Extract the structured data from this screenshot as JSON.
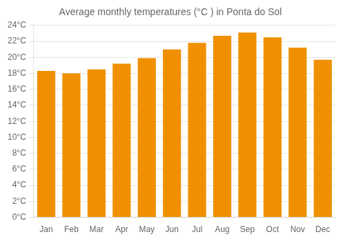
{
  "chart_data": {
    "type": "bar",
    "title": "Average monthly temperatures (°C ) in Ponta do Sol",
    "categories": [
      "Jan",
      "Feb",
      "Mar",
      "Apr",
      "May",
      "Jun",
      "Jul",
      "Aug",
      "Sep",
      "Oct",
      "Nov",
      "Dec"
    ],
    "values": [
      18.3,
      18.0,
      18.5,
      19.2,
      19.9,
      21.0,
      21.8,
      22.7,
      23.1,
      22.5,
      21.2,
      19.7
    ],
    "color": "#F09000",
    "ylim": [
      0,
      24
    ],
    "yticks": [
      {
        "value": 0,
        "label": "0°C"
      },
      {
        "value": 2,
        "label": "2°C"
      },
      {
        "value": 4,
        "label": "4°C"
      },
      {
        "value": 6,
        "label": "6°C"
      },
      {
        "value": 8,
        "label": "8°C"
      },
      {
        "value": 10,
        "label": "10°C"
      },
      {
        "value": 12,
        "label": "12°C"
      },
      {
        "value": 14,
        "label": "14°C"
      },
      {
        "value": 16,
        "label": "16°C"
      },
      {
        "value": 18,
        "label": "18°C"
      },
      {
        "value": 20,
        "label": "20°C"
      },
      {
        "value": 22,
        "label": "22°C"
      },
      {
        "value": 24,
        "label": "24°C"
      }
    ],
    "grid": true
  }
}
